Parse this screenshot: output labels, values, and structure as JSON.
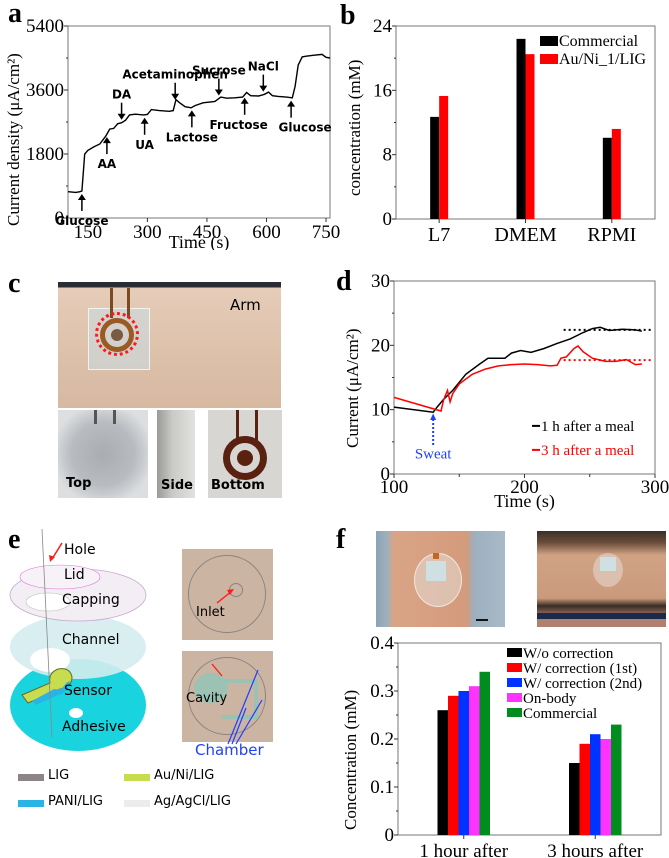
{
  "panels": {
    "a": {
      "label": "a"
    },
    "b": {
      "label": "b"
    },
    "c": {
      "label": "c",
      "arm_label": "Arm",
      "sub_labels": [
        "Top",
        "Side",
        "Bottom"
      ]
    },
    "d": {
      "label": "d"
    },
    "e": {
      "label": "e",
      "layer_labels": [
        "Hole",
        "Lid",
        "Capping",
        "Channel",
        "Sensor",
        "Adhesive"
      ],
      "photo_labels": {
        "inlet": "Inlet",
        "cavity": "Cavity",
        "chamber": "Chamber"
      },
      "legend": [
        {
          "name": "LIG",
          "color": "#8c8487"
        },
        {
          "name": "Au/Ni/LIG",
          "color": "#c8dc50"
        },
        {
          "name": "PANI/LIG",
          "color": "#2ab4e6"
        },
        {
          "name": "Ag/AgCl/LIG",
          "color": "#ececec"
        }
      ]
    },
    "f": {
      "label": "f"
    }
  },
  "chart_data": [
    {
      "id": "a",
      "type": "line",
      "title": "",
      "xlabel": "Time (s)",
      "ylabel": "Current density (μA/cm²)",
      "xlim": [
        100,
        760
      ],
      "ylim": [
        0,
        5400
      ],
      "xticks": [
        150,
        300,
        450,
        600,
        750
      ],
      "yticks": [
        0,
        1800,
        3600,
        5400
      ],
      "series": [
        {
          "name": "current density",
          "color": "#000000",
          "x": [
            100,
            120,
            130,
            135,
            138,
            142,
            150,
            165,
            180,
            195,
            205,
            215,
            225,
            235,
            245,
            255,
            270,
            290,
            300,
            310,
            330,
            355,
            365,
            372,
            380,
            395,
            410,
            420,
            440,
            470,
            485,
            500,
            520,
            540,
            550,
            560,
            580,
            595,
            605,
            615,
            630,
            650,
            665,
            672,
            680,
            690,
            700,
            720,
            740,
            750,
            760
          ],
          "y": [
            740,
            720,
            740,
            760,
            1200,
            1800,
            1900,
            2000,
            2080,
            2300,
            2500,
            2520,
            2650,
            2680,
            2750,
            2900,
            2920,
            2900,
            2910,
            3050,
            3020,
            3000,
            3020,
            3330,
            3250,
            3130,
            3100,
            3160,
            3240,
            3280,
            3400,
            3370,
            3380,
            3400,
            3530,
            3440,
            3430,
            3480,
            3540,
            3440,
            3420,
            3400,
            3380,
            3700,
            4300,
            4530,
            4550,
            4580,
            4600,
            4520,
            4500
          ]
        }
      ],
      "annotations": [
        {
          "text": "Glucose",
          "x": 135,
          "direction": "up"
        },
        {
          "text": "AA",
          "x": 198,
          "direction": "up"
        },
        {
          "text": "DA",
          "x": 235,
          "direction": "down"
        },
        {
          "text": "UA",
          "x": 293,
          "direction": "up"
        },
        {
          "text": "Acetaminophen",
          "x": 370,
          "direction": "down"
        },
        {
          "text": "Lactose",
          "x": 412,
          "direction": "up"
        },
        {
          "text": "Sucrose",
          "x": 480,
          "direction": "down"
        },
        {
          "text": "Fructose",
          "x": 545,
          "direction": "up"
        },
        {
          "text": "NaCl",
          "x": 592,
          "direction": "down"
        },
        {
          "text": "Glucose",
          "x": 662,
          "direction": "up"
        }
      ]
    },
    {
      "id": "b",
      "type": "bar",
      "title": "",
      "xlabel": "",
      "ylabel": "concentration (mM)",
      "ylim": [
        0,
        24
      ],
      "yticks": [
        0,
        8,
        16,
        24
      ],
      "categories": [
        "L7",
        "DMEM",
        "RPMI"
      ],
      "series": [
        {
          "name": "Commercial",
          "color": "#000000",
          "values": [
            12.7,
            22.4,
            10.1
          ]
        },
        {
          "name": "Au/Ni_1/LIG",
          "color": "#ff0000",
          "values": [
            15.3,
            20.5,
            11.2
          ]
        }
      ],
      "legend": "top-right"
    },
    {
      "id": "d",
      "type": "line",
      "title": "",
      "xlabel": "Time (s)",
      "ylabel": "Current (μA/cm²)",
      "xlim": [
        100,
        300
      ],
      "ylim": [
        0,
        30
      ],
      "xticks": [
        100,
        200,
        300
      ],
      "yticks": [
        0,
        10,
        20,
        30
      ],
      "series": [
        {
          "name": "1 h after a meal",
          "color": "#000000",
          "x": [
            100,
            130,
            133,
            138,
            145,
            155,
            165,
            172,
            180,
            185,
            190,
            197,
            205,
            215,
            225,
            235,
            245,
            252,
            258,
            265,
            275,
            285,
            290
          ],
          "y": [
            10.4,
            9.6,
            10.4,
            11.6,
            13.0,
            15.5,
            17.0,
            18.0,
            18.0,
            18.0,
            18.8,
            19.2,
            18.9,
            19.5,
            20.3,
            21.0,
            22.0,
            22.6,
            22.8,
            22.3,
            22.5,
            22.4,
            22.2
          ]
        },
        {
          "name": "3 h after a meal",
          "color": "#ff0000",
          "x": [
            100,
            136,
            138,
            141,
            143,
            145,
            150,
            160,
            170,
            180,
            190,
            200,
            210,
            220,
            225,
            228,
            232,
            238,
            241,
            245,
            252,
            262,
            270,
            278,
            285,
            290
          ],
          "y": [
            11.9,
            9.8,
            11.5,
            13.0,
            11.2,
            12.5,
            14.0,
            15.5,
            16.3,
            16.8,
            17.0,
            17.1,
            17.0,
            16.8,
            16.9,
            18.0,
            18.2,
            19.5,
            19.9,
            19.0,
            18.0,
            17.5,
            17.5,
            17.8,
            17.0,
            17.1
          ]
        }
      ],
      "reference_lines": [
        {
          "color": "#000000",
          "y": 22.4,
          "x": [
            230,
            300
          ],
          "style": "dotted"
        },
        {
          "color": "#ff0000",
          "y": 17.7,
          "x": [
            230,
            300
          ],
          "style": "dotted"
        }
      ],
      "annotations": [
        {
          "text": "Sweat",
          "x": 130,
          "color": "#1f3fff"
        }
      ],
      "legend": "bottom-right"
    },
    {
      "id": "f",
      "type": "bar",
      "title": "",
      "xlabel": "",
      "ylabel": "Concentration (mM)",
      "ylim": [
        0,
        0.4
      ],
      "yticks": [
        0,
        0.1,
        0.2,
        0.3,
        0.4
      ],
      "categories": [
        "1 hour after",
        "3 hours after"
      ],
      "series": [
        {
          "name": "W/o correction",
          "color": "#000000",
          "values": [
            0.26,
            0.15
          ]
        },
        {
          "name": "W/ correction (1st)",
          "color": "#ff0000",
          "values": [
            0.29,
            0.19
          ]
        },
        {
          "name": "W/ correction (2nd)",
          "color": "#0033ff",
          "values": [
            0.3,
            0.21
          ]
        },
        {
          "name": "On-body",
          "color": "#ff33ff",
          "values": [
            0.31,
            0.2
          ]
        },
        {
          "name": "Commercial",
          "color": "#008c1e",
          "values": [
            0.34,
            0.23
          ]
        }
      ],
      "legend": "top-right"
    }
  ]
}
